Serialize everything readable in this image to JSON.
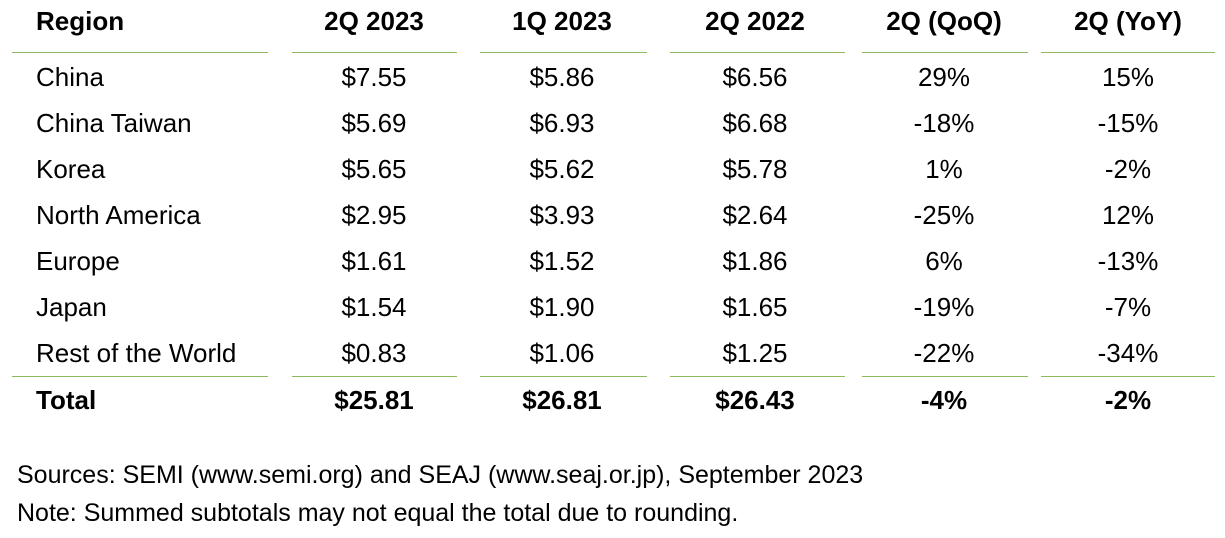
{
  "chart_data": {
    "type": "table",
    "columns": [
      "Region",
      "2Q 2023",
      "1Q 2023",
      "2Q 2022",
      "2Q (QoQ)",
      "2Q (YoY)"
    ],
    "rows": [
      [
        "China",
        "$7.55",
        "$5.86",
        "$6.56",
        "29%",
        "15%"
      ],
      [
        "China Taiwan",
        "$5.69",
        "$6.93",
        "$6.68",
        "-18%",
        "-15%"
      ],
      [
        "Korea",
        "$5.65",
        "$5.62",
        "$5.78",
        "1%",
        "-2%"
      ],
      [
        "North America",
        "$2.95",
        "$3.93",
        "$2.64",
        "-25%",
        "12%"
      ],
      [
        "Europe",
        "$1.61",
        "$1.52",
        "$1.86",
        "6%",
        "-13%"
      ],
      [
        "Japan",
        "$1.54",
        "$1.90",
        "$1.65",
        "-19%",
        "-7%"
      ],
      [
        "Rest of the World",
        "$0.83",
        "$1.06",
        "$1.25",
        "-22%",
        "-34%"
      ]
    ],
    "total": [
      "Total",
      "$25.81",
      "$26.81",
      "$26.43",
      "-4%",
      "-2%"
    ],
    "rule_color": "#8dba5a"
  },
  "notes": {
    "sources": "Sources: SEMI (www.semi.org) and SEAJ (www.seaj.or.jp), September 2023",
    "note": "Note: Summed subtotals may not equal the total due to rounding."
  }
}
